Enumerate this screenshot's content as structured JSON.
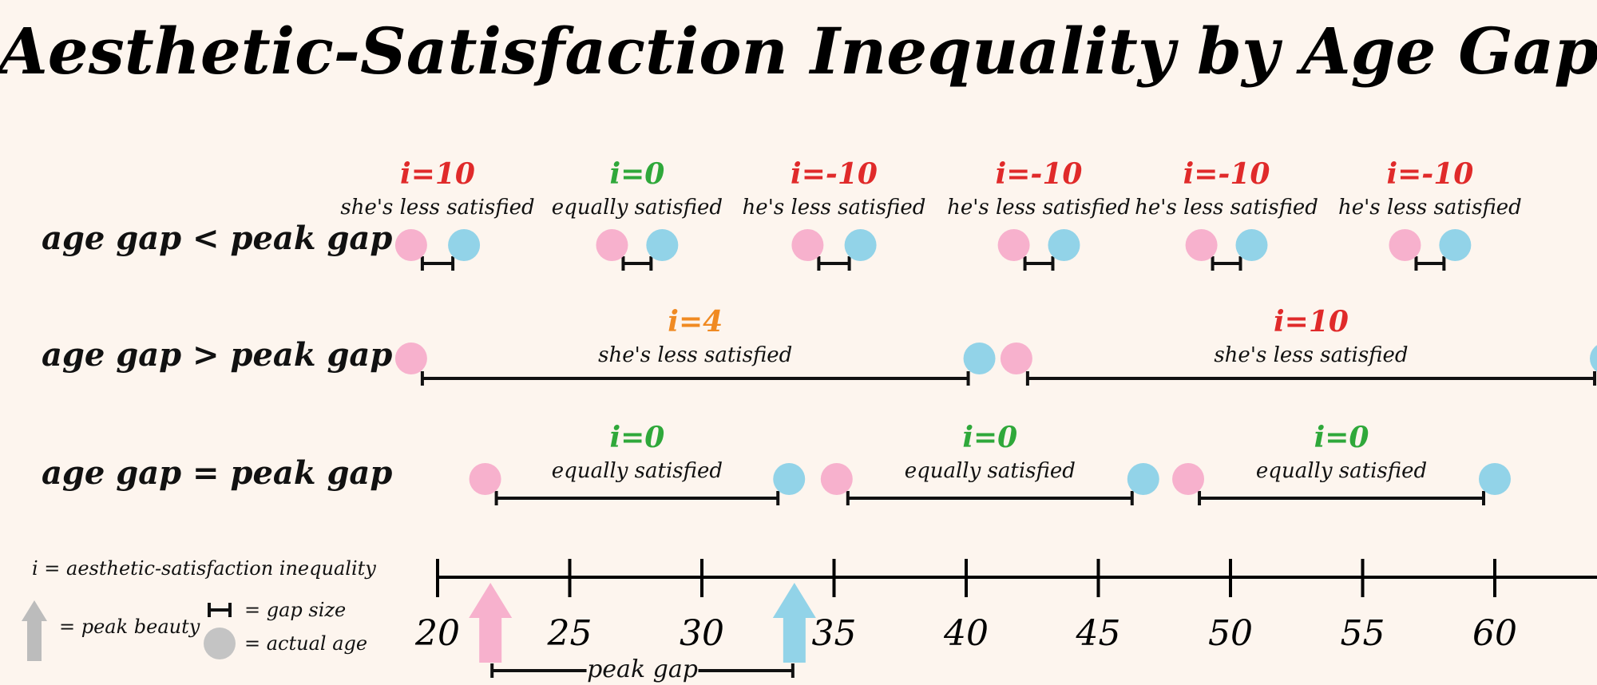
{
  "title": "Aesthetic-Satisfaction Inequality by Age Gap",
  "colors": {
    "female": "#f7b1cd",
    "male": "#92d3e8",
    "unequal": "#e02a2a",
    "equal": "#2fa83a",
    "moderate": "#f08a22",
    "peak_arrow": "#bcbcbc"
  },
  "axis": {
    "min": 20,
    "max": 65,
    "ticks": [
      "20",
      "25",
      "30",
      "35",
      "40",
      "45",
      "50",
      "55",
      "60"
    ]
  },
  "peak_beauty": {
    "female_age": 22,
    "male_age": 33.5
  },
  "peak_gap_label": "peak gap",
  "rows": [
    {
      "label": "age gap < peak gap",
      "pairs": [
        {
          "female_age": 19,
          "male_age": 21,
          "i": "i=10",
          "color": "#e02a2a",
          "description": "she's less satisfied"
        },
        {
          "female_age": 26.6,
          "male_age": 28.5,
          "i": "i=0",
          "color": "#2fa83a",
          "description": "equally satisfied"
        },
        {
          "female_age": 34,
          "male_age": 36,
          "i": "i=-10",
          "color": "#e02a2a",
          "description": "he's less satisfied"
        },
        {
          "female_age": 41.8,
          "male_age": 43.7,
          "i": "i=-10",
          "color": "#e02a2a",
          "description": "he's less satisfied"
        },
        {
          "female_age": 48.9,
          "male_age": 50.8,
          "i": "i=-10",
          "color": "#e02a2a",
          "description": "he's less satisfied"
        },
        {
          "female_age": 56.6,
          "male_age": 58.5,
          "i": "i=-10",
          "color": "#e02a2a",
          "description": "he's less satisfied"
        }
      ]
    },
    {
      "label": "age gap > peak gap",
      "pairs": [
        {
          "female_age": 19,
          "male_age": 40.5,
          "i": "i=4",
          "color": "#f08a22",
          "description": "she's less satisfied"
        },
        {
          "female_age": 41.9,
          "male_age": 64.2,
          "i": "i=10",
          "color": "#e02a2a",
          "description": "she's less satisfied"
        }
      ]
    },
    {
      "label": "age gap = peak gap",
      "pairs": [
        {
          "female_age": 21.8,
          "male_age": 33.3,
          "i": "i=0",
          "color": "#2fa83a",
          "description": "equally satisfied"
        },
        {
          "female_age": 35.1,
          "male_age": 46.7,
          "i": "i=0",
          "color": "#2fa83a",
          "description": "equally satisfied"
        },
        {
          "female_age": 48.4,
          "male_age": 60,
          "i": "i=0",
          "color": "#2fa83a",
          "description": "equally satisfied"
        }
      ]
    }
  ],
  "legend": {
    "i_def": "i = aesthetic-satisfaction inequality",
    "peak_beauty": "= peak beauty",
    "gap_size": "= gap size",
    "actual_age": "= actual age"
  }
}
